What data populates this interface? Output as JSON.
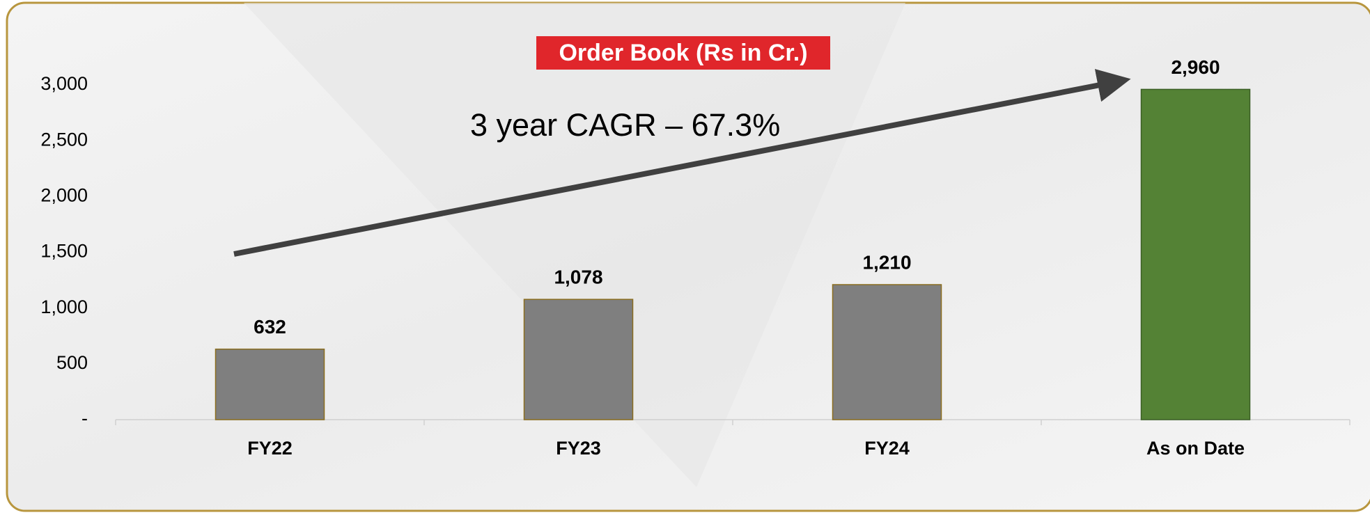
{
  "chart_data": {
    "type": "bar",
    "title": "Order Book (Rs in Cr.)",
    "annotation": "3 year CAGR – 67.3%",
    "categories": [
      "FY22",
      "FY23",
      "FY24",
      "As on Date"
    ],
    "values": [
      632,
      1078,
      1210,
      2960
    ],
    "value_labels": [
      "632",
      "1,078",
      "1,210",
      "2,960"
    ],
    "colors": [
      "#7f7f7f",
      "#7f7f7f",
      "#7f7f7f",
      "#548235"
    ],
    "ylim": [
      0,
      3000
    ],
    "yticks": [
      {
        "value": 0,
        "label": "-"
      },
      500,
      {
        "value": 1000,
        "label": "1,000"
      },
      {
        "value": 1500,
        "label": "1,500"
      },
      {
        "value": 2000,
        "label": "2,000"
      },
      {
        "value": 2500,
        "label": "2,500"
      },
      {
        "value": 3000,
        "label": "3,000"
      }
    ],
    "grid": false
  }
}
